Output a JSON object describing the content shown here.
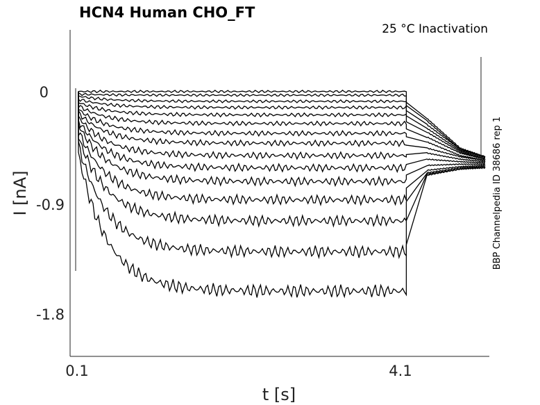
{
  "chart_data": {
    "type": "line",
    "title": "HCN4  Human  CHO_FT",
    "subtitle": "25 °C  Inactivation",
    "xlabel": "t [s]",
    "ylabel": "I [nA]",
    "side_label": "BBP Channelpedia ID 38686 rep 1",
    "x_ticks": [
      "0.1",
      "4.1"
    ],
    "y_ticks": [
      "0",
      "-0.9",
      "-1.8"
    ],
    "xlim": [
      0.05,
      5.1
    ],
    "ylim": [
      -2.15,
      0.5
    ],
    "series_color": "#000000",
    "series": [
      {
        "values": [
          [
            0.15,
            0.0
          ],
          [
            4.1,
            0.0
          ],
          [
            4.35,
            -0.22
          ],
          [
            4.75,
            -0.46
          ],
          [
            5.05,
            -0.53
          ]
        ]
      },
      {
        "values": [
          [
            0.15,
            -0.02
          ],
          [
            4.1,
            -0.03
          ],
          [
            4.35,
            -0.24
          ],
          [
            4.75,
            -0.47
          ],
          [
            5.05,
            -0.53
          ]
        ]
      },
      {
        "values": [
          [
            0.15,
            -0.03
          ],
          [
            4.1,
            -0.08
          ],
          [
            4.35,
            -0.27
          ],
          [
            4.75,
            -0.47
          ],
          [
            5.05,
            -0.53
          ]
        ]
      },
      {
        "values": [
          [
            0.15,
            -0.05
          ],
          [
            4.1,
            -0.13
          ],
          [
            4.35,
            -0.3
          ],
          [
            4.75,
            -0.48
          ],
          [
            5.05,
            -0.54
          ]
        ]
      },
      {
        "values": [
          [
            0.15,
            -0.07
          ],
          [
            4.1,
            -0.19
          ],
          [
            4.35,
            -0.33
          ],
          [
            4.75,
            -0.49
          ],
          [
            5.05,
            -0.55
          ]
        ]
      },
      {
        "values": [
          [
            0.15,
            -0.09
          ],
          [
            4.1,
            -0.26
          ],
          [
            4.35,
            -0.37
          ],
          [
            4.75,
            -0.5
          ],
          [
            5.05,
            -0.55
          ]
        ]
      },
      {
        "values": [
          [
            0.15,
            -0.11
          ],
          [
            4.1,
            -0.34
          ],
          [
            4.35,
            -0.41
          ],
          [
            4.75,
            -0.52
          ],
          [
            5.05,
            -0.56
          ]
        ]
      },
      {
        "values": [
          [
            0.15,
            -0.13
          ],
          [
            4.1,
            -0.42
          ],
          [
            4.35,
            -0.46
          ],
          [
            4.75,
            -0.53
          ],
          [
            5.05,
            -0.56
          ]
        ]
      },
      {
        "values": [
          [
            0.15,
            -0.15
          ],
          [
            4.1,
            -0.52
          ],
          [
            4.35,
            -0.5
          ],
          [
            4.75,
            -0.55
          ],
          [
            5.05,
            -0.57
          ]
        ]
      },
      {
        "values": [
          [
            0.15,
            -0.17
          ],
          [
            4.1,
            -0.62
          ],
          [
            4.35,
            -0.55
          ],
          [
            4.75,
            -0.57
          ],
          [
            5.05,
            -0.58
          ]
        ]
      },
      {
        "values": [
          [
            0.15,
            -0.19
          ],
          [
            4.1,
            -0.73
          ],
          [
            4.35,
            -0.6
          ],
          [
            4.75,
            -0.59
          ],
          [
            5.05,
            -0.59
          ]
        ]
      },
      {
        "values": [
          [
            0.15,
            -0.22
          ],
          [
            4.1,
            -0.88
          ],
          [
            4.35,
            -0.64
          ],
          [
            4.75,
            -0.61
          ],
          [
            5.05,
            -0.6
          ]
        ]
      },
      {
        "values": [
          [
            0.15,
            -0.25
          ],
          [
            4.1,
            -1.05
          ],
          [
            4.35,
            -0.66
          ],
          [
            4.75,
            -0.62
          ],
          [
            5.05,
            -0.61
          ]
        ]
      },
      {
        "values": [
          [
            0.15,
            -0.28
          ],
          [
            4.1,
            -1.3
          ],
          [
            4.35,
            -0.67
          ],
          [
            4.75,
            -0.63
          ],
          [
            5.05,
            -0.61
          ]
        ]
      },
      {
        "values": [
          [
            0.15,
            -0.31
          ],
          [
            4.1,
            -1.62
          ],
          [
            4.35,
            -0.68
          ],
          [
            4.75,
            -0.63
          ],
          [
            5.05,
            -0.62
          ]
        ]
      }
    ]
  }
}
